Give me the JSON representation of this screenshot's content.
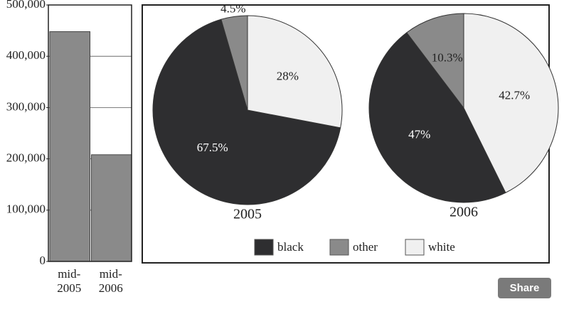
{
  "chart_data": [
    {
      "type": "bar",
      "categories": [
        "mid-\n2005",
        "mid-\n2006"
      ],
      "values": [
        448000,
        208000
      ],
      "color": "#8a8a8a",
      "ylim": [
        0,
        500000
      ],
      "yticks": [
        0,
        {
          "value": 100000,
          "label": "100,000"
        },
        {
          "value": 200000,
          "label": "200,000"
        },
        {
          "value": 300000,
          "label": "300,000"
        },
        {
          "value": 400000,
          "label": "400,000"
        },
        {
          "value": 500000,
          "label": "500,000"
        }
      ],
      "grid": true
    },
    {
      "type": "pie",
      "title": "2005",
      "categories": [
        "black",
        "other",
        "white"
      ],
      "colors": [
        "#2e2e30",
        "#8a8a8a",
        "#f0f0f0"
      ],
      "values": [
        67.5,
        4.5,
        28
      ],
      "value_labels": [
        "67.5%",
        "4.5%",
        "28%"
      ]
    },
    {
      "type": "pie",
      "title": "2006",
      "categories": [
        "black",
        "other",
        "white"
      ],
      "colors": [
        "#2e2e30",
        "#8a8a8a",
        "#f0f0f0"
      ],
      "values": [
        47,
        10.3,
        42.7
      ],
      "value_labels": [
        "47%",
        "10.3%",
        "42.7%"
      ]
    }
  ],
  "share_button": "Share"
}
